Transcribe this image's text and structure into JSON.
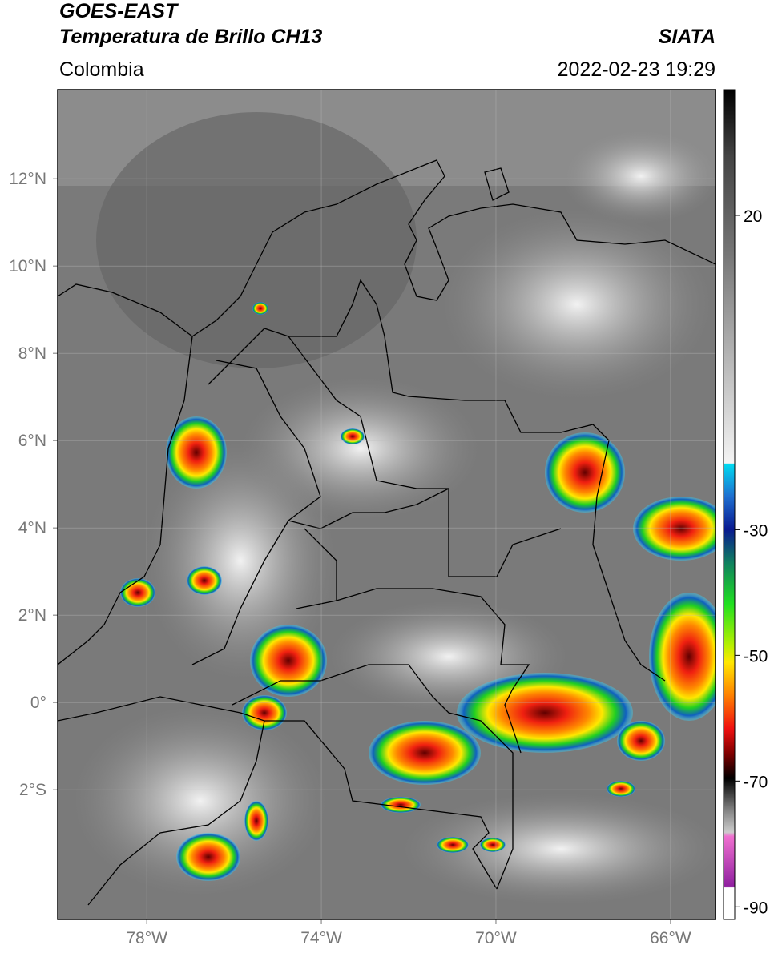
{
  "header": {
    "satellite": "GOES-EAST",
    "product": "Temperatura de Brillo CH13",
    "source": "SIATA",
    "region": "Colombia",
    "datetime": "2022-02-23 19:29"
  },
  "map": {
    "latlim": [
      -4.97,
      14.04
    ],
    "lonlim": [
      -80.04,
      -64.97
    ],
    "lat_ticks": [
      {
        "value": 12,
        "label": "12°N"
      },
      {
        "value": 10,
        "label": "10°N"
      },
      {
        "value": 8,
        "label": "8°N"
      },
      {
        "value": 6,
        "label": "6°N"
      },
      {
        "value": 4,
        "label": "4°N"
      },
      {
        "value": 2,
        "label": "2°N"
      },
      {
        "value": 0,
        "label": "0°"
      },
      {
        "value": -2,
        "label": "2°S"
      }
    ],
    "lon_ticks": [
      {
        "value": -78,
        "label": "78°W"
      },
      {
        "value": -74,
        "label": "74°W"
      },
      {
        "value": -70,
        "label": "70°W"
      },
      {
        "value": -66,
        "label": "66°W"
      }
    ]
  },
  "colorbar": {
    "vlim": [
      -92,
      40
    ],
    "ticks": [
      20,
      -30,
      -50,
      -70,
      -90
    ]
  }
}
